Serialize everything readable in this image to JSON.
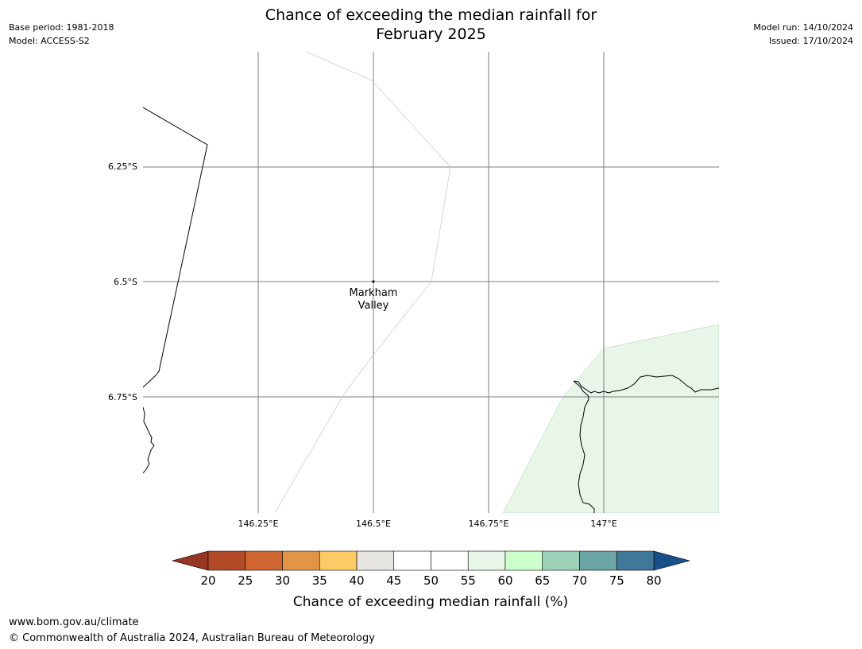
{
  "header": {
    "base_period": "Base period: 1981-2018",
    "model": "Model: ACCESS-S2",
    "model_run": "Model run: 14/10/2024",
    "issued": "Issued: 17/10/2024",
    "title_line1": "Chance of exceeding the median rainfall for",
    "title_line2": "February 2025"
  },
  "map": {
    "lat_labels": [
      "6.25°S",
      "6.5°S",
      "6.75°S"
    ],
    "lon_labels": [
      "146.25°E",
      "146.5°E",
      "146.75°E",
      "147°E"
    ],
    "place": {
      "name_line1": "Markham",
      "name_line2": "Valley"
    },
    "colors": {
      "gridline": "#7f7f7f",
      "region_fill": "#e9f5e9",
      "boundary": "#000000"
    }
  },
  "colorbar": {
    "tick_labels": [
      "20",
      "25",
      "30",
      "35",
      "40",
      "45",
      "50",
      "55",
      "60",
      "65",
      "70",
      "75",
      "80"
    ],
    "bins": [
      {
        "from": 20,
        "to": 25,
        "color": "#b24a27"
      },
      {
        "from": 25,
        "to": 30,
        "color": "#cf6530"
      },
      {
        "from": 30,
        "to": 35,
        "color": "#e39547"
      },
      {
        "from": 35,
        "to": 40,
        "color": "#fecb66"
      },
      {
        "from": 40,
        "to": 45,
        "color": "#e8e6e3"
      },
      {
        "from": 45,
        "to": 50,
        "color": "#ffffff"
      },
      {
        "from": 50,
        "to": 55,
        "color": "#ffffff"
      },
      {
        "from": 55,
        "to": 60,
        "color": "#e9f6e9"
      },
      {
        "from": 60,
        "to": 65,
        "color": "#ccffcc"
      },
      {
        "from": 65,
        "to": 70,
        "color": "#9dd1b9"
      },
      {
        "from": 70,
        "to": 75,
        "color": "#6ba5a5"
      },
      {
        "from": 75,
        "to": 80,
        "color": "#3f7899"
      }
    ],
    "under_color": "#953625",
    "over_color": "#175089",
    "label": "Chance of exceeding median rainfall (%)"
  },
  "footer": {
    "url": "www.bom.gov.au/climate",
    "copyright": "© Commonwealth of Australia 2024, Australian Bureau of Meteorology"
  }
}
